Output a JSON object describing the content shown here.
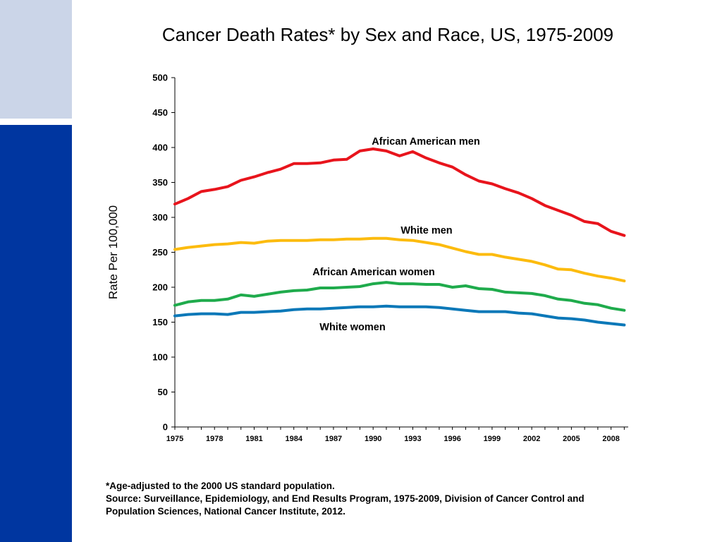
{
  "colors": {
    "sidebar_top": "#cbd5e8",
    "sidebar_bottom": "#0036a0"
  },
  "chart_data": {
    "type": "line",
    "title": "Cancer Death Rates* by Sex and Race, US, 1975-2009",
    "ylabel": "Rate Per 100,000",
    "xlabel": "",
    "ylim": [
      0,
      500
    ],
    "yticks": [
      "0",
      "50",
      "100",
      "150",
      "200",
      "250",
      "300",
      "350",
      "400",
      "450",
      "500"
    ],
    "xlim": [
      1975,
      2009
    ],
    "xtick_labels": [
      "1975",
      "1978",
      "1981",
      "1984",
      "1987",
      "1990",
      "1993",
      "1996",
      "1999",
      "2002",
      "2005",
      "2008"
    ],
    "grid": false,
    "legend": "inline labels",
    "x": [
      1975,
      1976,
      1977,
      1978,
      1979,
      1980,
      1981,
      1982,
      1983,
      1984,
      1985,
      1986,
      1987,
      1988,
      1989,
      1990,
      1991,
      1992,
      1993,
      1994,
      1995,
      1996,
      1997,
      1998,
      1999,
      2000,
      2001,
      2002,
      2003,
      2004,
      2005,
      2006,
      2007,
      2008,
      2009
    ],
    "series": [
      {
        "name": "African American men",
        "color": "#e8141c",
        "values": [
          319,
          327,
          337,
          340,
          344,
          353,
          358,
          364,
          369,
          377,
          377,
          378,
          382,
          383,
          395,
          398,
          395,
          388,
          394,
          385,
          378,
          372,
          361,
          352,
          348,
          341,
          335,
          327,
          317,
          310,
          303,
          294,
          291,
          280,
          274
        ]
      },
      {
        "name": "White men",
        "color": "#fcbb0e",
        "values": [
          254,
          257,
          259,
          261,
          262,
          264,
          263,
          266,
          267,
          267,
          267,
          268,
          268,
          269,
          269,
          270,
          270,
          268,
          267,
          264,
          261,
          256,
          251,
          247,
          247,
          243,
          240,
          237,
          232,
          226,
          225,
          220,
          216,
          213,
          209
        ]
      },
      {
        "name": "African American women",
        "color": "#1fab4c",
        "values": [
          174,
          179,
          181,
          181,
          183,
          189,
          187,
          190,
          193,
          195,
          196,
          199,
          199,
          200,
          201,
          205,
          207,
          205,
          205,
          204,
          204,
          200,
          202,
          198,
          197,
          193,
          192,
          191,
          188,
          183,
          181,
          177,
          175,
          170,
          167
        ]
      },
      {
        "name": "White women",
        "color": "#0b78b8",
        "values": [
          159,
          161,
          162,
          162,
          161,
          164,
          164,
          165,
          166,
          168,
          169,
          169,
          170,
          171,
          172,
          172,
          173,
          172,
          172,
          172,
          171,
          169,
          167,
          165,
          165,
          165,
          163,
          162,
          159,
          156,
          155,
          153,
          150,
          148,
          146
        ]
      }
    ]
  },
  "footnote": {
    "line1": "*Age-adjusted to the 2000 US standard population.",
    "line2": "Source: Surveillance, Epidemiology, and End Results Program, 1975-2009, Division of Cancer Control and",
    "line3": "Population Sciences, National Cancer Institute, 2012."
  }
}
